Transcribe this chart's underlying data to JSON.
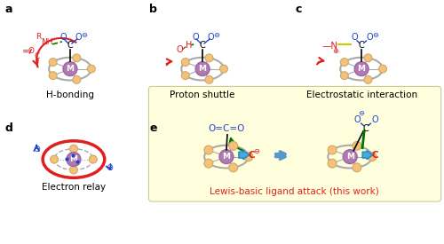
{
  "bg_color": "#ffffff",
  "yellow_bg": "#ffffdd",
  "panel_labels": [
    "a",
    "b",
    "c",
    "d",
    "e"
  ],
  "captions": [
    "H-bonding",
    "Proton shuttle",
    "Electrostatic interaction",
    "Electron relay",
    "Lewis-basic ligand attack (this work)"
  ],
  "metal_color": "#b07ab0",
  "ligand_color": "#f5c07a",
  "red": "#e02020",
  "blue": "#2244cc",
  "green": "#007700",
  "dark_gray": "#333333",
  "gray_ring": "#aaaaaa",
  "cyan_arrow": "#44aadd",
  "yellow_wave": "#cccc00"
}
